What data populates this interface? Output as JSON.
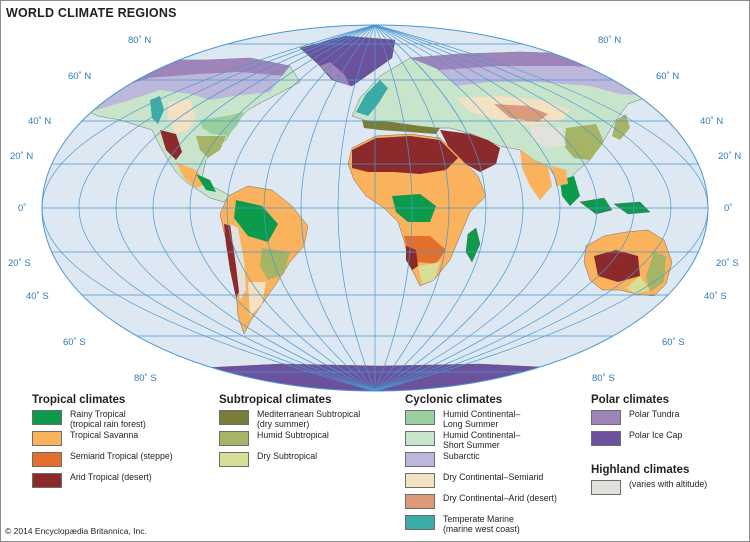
{
  "title": "WORLD CLIMATE REGIONS",
  "lat_labels": {
    "n80": "80˚ N",
    "n60": "60˚ N",
    "n40": "40˚ N",
    "n20": "20˚ N",
    "eq": "0˚",
    "s20": "20˚ S",
    "s40": "40˚ S",
    "s60": "60˚ S",
    "s80": "80˚ S"
  },
  "colors": {
    "ocean": "#dde8f3",
    "graticule": "#4a97cf",
    "rainforest": "#0c9b4b",
    "savanna": "#fbb25d",
    "steppe": "#e2702c",
    "desert": "#8c2a2b",
    "mediterranean": "#7a7d39",
    "humid_subtropical": "#a6b466",
    "dry_subtropical": "#d6de98",
    "hc_long": "#99cf9c",
    "hc_short": "#c8e5cb",
    "subarctic": "#bdb7dc",
    "dc_semiarid": "#f2e1c3",
    "dc_arid": "#dd9a7b",
    "marine": "#3aaba5",
    "tundra": "#9f84b9",
    "icecap": "#6c519d",
    "highland": "#e2e1dc"
  },
  "legend": {
    "tropical": {
      "title": "Tropical climates",
      "items": [
        {
          "line1": "Rainy Tropical",
          "line2": "(tropical rain forest)"
        },
        {
          "line1": "Tropical Savanna",
          "line2": ""
        },
        {
          "line1": "Semiarid Tropical (steppe)",
          "line2": ""
        },
        {
          "line1": "Arid Tropical (desert)",
          "line2": ""
        }
      ]
    },
    "subtropical": {
      "title": "Subtropical climates",
      "items": [
        {
          "line1": "Mediterranean Subtropical",
          "line2": "(dry summer)"
        },
        {
          "line1": "Humid Subtropical",
          "line2": ""
        },
        {
          "line1": "Dry Subtropical",
          "line2": ""
        }
      ]
    },
    "cyclonic": {
      "title": "Cyclonic climates",
      "items": [
        {
          "line1": "Humid Continental–",
          "line2": "Long Summer"
        },
        {
          "line1": "Humid Continental–",
          "line2": "Short Summer"
        },
        {
          "line1": "Subarctic",
          "line2": ""
        },
        {
          "line1": "Dry Continental–Semiarid",
          "line2": ""
        },
        {
          "line1": "Dry Continental–Arid (desert)",
          "line2": ""
        },
        {
          "line1": "Temperate Marine",
          "line2": "(marine west coast)"
        }
      ]
    },
    "polar": {
      "title": "Polar climates",
      "items": [
        {
          "line1": "Polar Tundra",
          "line2": ""
        },
        {
          "line1": "Polar Ice Cap",
          "line2": ""
        }
      ]
    },
    "highland": {
      "title": "Highland climates",
      "items": [
        {
          "line1": "(varies with altitude)",
          "line2": ""
        }
      ]
    }
  },
  "copyright": "© 2014 Encyclopædia Britannica, Inc."
}
